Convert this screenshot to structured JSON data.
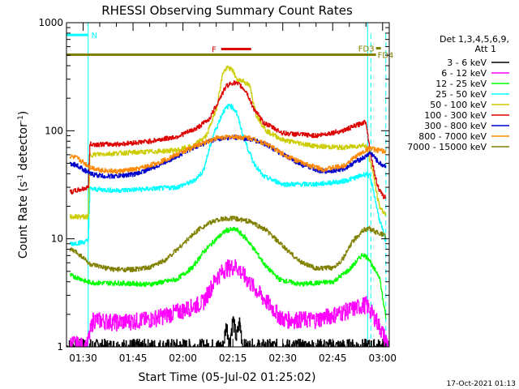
{
  "chart_data": {
    "type": "line",
    "title": "RHESSI Observing Summary Count Rates",
    "xlabel": "Start Time (05-Jul-02 01:25:02)",
    "ylabel_main": "Count Rate (s",
    "ylabel_sup1": "-1",
    "ylabel_mid": " detector",
    "ylabel_sup2": "-1",
    "ylabel_end": ")",
    "yscale": "log",
    "ylim": [
      1,
      1000
    ],
    "xlim_minutes": [
      85,
      182
    ],
    "y_ticks": [
      {
        "value": 1,
        "label": "1"
      },
      {
        "value": 10,
        "label": "10"
      },
      {
        "value": 100,
        "label": "100"
      },
      {
        "value": 1000,
        "label": "1000"
      }
    ],
    "x_ticks": [
      {
        "value": 90,
        "label": "01:30"
      },
      {
        "value": 105,
        "label": "01:45"
      },
      {
        "value": 120,
        "label": "02:00"
      },
      {
        "value": 135,
        "label": "02:15"
      },
      {
        "value": 150,
        "label": "02:30"
      },
      {
        "value": 165,
        "label": "02:45"
      },
      {
        "value": 180,
        "label": "03:00"
      }
    ],
    "legend": {
      "position": "right",
      "header_line1": "Det 1,3,4,5,6,9,",
      "header_line2": "Att 1",
      "entries": [
        {
          "label": "3 - 6 keV",
          "color": "#000000"
        },
        {
          "label": "6 - 12 keV",
          "color": "#ff00ff"
        },
        {
          "label": "12 - 25 keV",
          "color": "#00ff00"
        },
        {
          "label": "25 - 50 keV",
          "color": "#00ffff"
        },
        {
          "label": "50 - 100 keV",
          "color": "#cccc00"
        },
        {
          "label": "100 - 300 keV",
          "color": "#dd0000"
        },
        {
          "label": "300 - 800 keV",
          "color": "#0000cc"
        },
        {
          "label": "800 - 7000 keV",
          "color": "#ff8800"
        },
        {
          "label": "7000 - 15000 keV",
          "color": "#808000"
        }
      ]
    },
    "flag_bars": [
      {
        "label": "N",
        "color": "#00ffff",
        "x_start": 85,
        "x_end": 91.5,
        "level": 770
      },
      {
        "label": "F",
        "color": "#dd0000",
        "x_start": 131.5,
        "x_end": 140.5,
        "level": 570
      },
      {
        "label": "FD3",
        "color": "#808000",
        "x_start": 178,
        "x_end": 179.5,
        "level": 580
      },
      {
        "label": "FD4",
        "color": "#808000",
        "x_start": 85,
        "x_end": 178,
        "level": 505
      }
    ],
    "night_boundaries_minutes": [
      91.5,
      175.5
    ],
    "saa_markers_minutes": [
      175.5,
      180
    ],
    "series": [
      {
        "name": "3 - 6 keV",
        "color": "#000000",
        "points": [
          [
            85,
            1
          ],
          [
            132,
            1
          ],
          [
            133,
            1.6
          ],
          [
            134,
            1.1
          ],
          [
            135,
            1.8
          ],
          [
            136,
            1.2
          ],
          [
            137,
            1.7
          ],
          [
            138,
            1
          ],
          [
            182,
            1
          ]
        ]
      },
      {
        "name": "6 - 12 keV",
        "color": "#ff00ff",
        "points": [
          [
            86,
            1.1
          ],
          [
            91,
            1
          ],
          [
            93,
            1.8
          ],
          [
            100,
            1.7
          ],
          [
            110,
            1.8
          ],
          [
            120,
            2.2
          ],
          [
            126,
            2.6
          ],
          [
            130,
            4.4
          ],
          [
            133,
            5.4
          ],
          [
            136,
            5.6
          ],
          [
            139,
            4.3
          ],
          [
            143,
            3.1
          ],
          [
            150,
            1.8
          ],
          [
            160,
            1.8
          ],
          [
            170,
            2.2
          ],
          [
            175,
            2.5
          ],
          [
            178,
            1.8
          ],
          [
            182,
            1
          ]
        ]
      },
      {
        "name": "12 - 25 keV",
        "color": "#00ff00",
        "points": [
          [
            86,
            4.6
          ],
          [
            89,
            4.3
          ],
          [
            91,
            4.0
          ],
          [
            94,
            3.9
          ],
          [
            100,
            3.9
          ],
          [
            110,
            3.8
          ],
          [
            118,
            4.2
          ],
          [
            123,
            5.5
          ],
          [
            126,
            7.5
          ],
          [
            130,
            10
          ],
          [
            133,
            12
          ],
          [
            136,
            12.2
          ],
          [
            139,
            10
          ],
          [
            142,
            7.5
          ],
          [
            145,
            5.5
          ],
          [
            149,
            4.2
          ],
          [
            155,
            3.8
          ],
          [
            165,
            4.0
          ],
          [
            170,
            5.2
          ],
          [
            174,
            7.2
          ],
          [
            176,
            6.5
          ],
          [
            177,
            5.4
          ],
          [
            178,
            5.0
          ],
          [
            179,
            4.5
          ],
          [
            180,
            2.8
          ],
          [
            181,
            1.8
          ]
        ]
      },
      {
        "name": "25 - 50 keV",
        "color": "#00ffff",
        "points": [
          [
            86,
            9
          ],
          [
            90,
            9.3
          ],
          [
            91.5,
            9.6
          ],
          [
            92,
            29
          ],
          [
            100,
            28
          ],
          [
            110,
            29
          ],
          [
            118,
            30
          ],
          [
            123,
            34
          ],
          [
            126,
            42
          ],
          [
            129,
            90
          ],
          [
            132,
            150
          ],
          [
            134,
            175
          ],
          [
            136,
            150
          ],
          [
            138,
            90
          ],
          [
            141,
            52
          ],
          [
            144,
            38
          ],
          [
            150,
            32
          ],
          [
            160,
            32
          ],
          [
            168,
            34
          ],
          [
            172,
            37
          ],
          [
            175,
            40
          ],
          [
            176,
            38
          ],
          [
            177,
            30
          ],
          [
            178,
            21
          ],
          [
            179,
            15
          ],
          [
            180,
            12
          ],
          [
            181,
            9
          ]
        ]
      },
      {
        "name": "50 - 100 keV",
        "color": "#cccc00",
        "points": [
          [
            86,
            16
          ],
          [
            90,
            16
          ],
          [
            91.5,
            16
          ],
          [
            92,
            60
          ],
          [
            100,
            62
          ],
          [
            110,
            64
          ],
          [
            118,
            66
          ],
          [
            123,
            72
          ],
          [
            127,
            90
          ],
          [
            130,
            160
          ],
          [
            132,
            350
          ],
          [
            133.5,
            385
          ],
          [
            135,
            360
          ],
          [
            136,
            300
          ],
          [
            138,
            290
          ],
          [
            140,
            260
          ],
          [
            142,
            140
          ],
          [
            145,
            100
          ],
          [
            150,
            82
          ],
          [
            160,
            72
          ],
          [
            168,
            70
          ],
          [
            172,
            72
          ],
          [
            175,
            74
          ],
          [
            176,
            55
          ],
          [
            177,
            42
          ],
          [
            178,
            28
          ],
          [
            179,
            20
          ],
          [
            180,
            18
          ],
          [
            181,
            17
          ]
        ]
      },
      {
        "name": "100 - 300 keV",
        "color": "#dd0000",
        "points": [
          [
            86,
            27
          ],
          [
            88,
            28
          ],
          [
            90,
            29
          ],
          [
            91.5,
            30
          ],
          [
            92,
            75
          ],
          [
            100,
            75
          ],
          [
            110,
            80
          ],
          [
            118,
            88
          ],
          [
            124,
            105
          ],
          [
            128,
            130
          ],
          [
            131,
            200
          ],
          [
            133,
            260
          ],
          [
            135,
            280
          ],
          [
            137,
            265
          ],
          [
            139,
            230
          ],
          [
            141,
            165
          ],
          [
            144,
            120
          ],
          [
            150,
            95
          ],
          [
            160,
            90
          ],
          [
            168,
            100
          ],
          [
            172,
            112
          ],
          [
            175,
            122
          ],
          [
            176,
            70
          ],
          [
            177,
            48
          ],
          [
            178,
            35
          ],
          [
            179,
            28
          ],
          [
            180,
            25
          ],
          [
            181,
            24
          ]
        ]
      },
      {
        "name": "300 - 800 keV",
        "color": "#0000cc",
        "points": [
          [
            86,
            50
          ],
          [
            88,
            48
          ],
          [
            90,
            44
          ],
          [
            92,
            40
          ],
          [
            96,
            38
          ],
          [
            100,
            38
          ],
          [
            106,
            40
          ],
          [
            112,
            47
          ],
          [
            118,
            58
          ],
          [
            124,
            72
          ],
          [
            130,
            84
          ],
          [
            135,
            87
          ],
          [
            140,
            84
          ],
          [
            145,
            75
          ],
          [
            150,
            60
          ],
          [
            156,
            48
          ],
          [
            162,
            42
          ],
          [
            168,
            44
          ],
          [
            172,
            52
          ],
          [
            175,
            58
          ],
          [
            176,
            62
          ],
          [
            177,
            60
          ],
          [
            178,
            54
          ],
          [
            179,
            50
          ],
          [
            180,
            48
          ],
          [
            181,
            47
          ]
        ]
      },
      {
        "name": "800 - 7000 keV",
        "color": "#ff8800",
        "points": [
          [
            86,
            58
          ],
          [
            88,
            56
          ],
          [
            90,
            51
          ],
          [
            92,
            46
          ],
          [
            96,
            43
          ],
          [
            100,
            42
          ],
          [
            106,
            44
          ],
          [
            112,
            50
          ],
          [
            118,
            60
          ],
          [
            124,
            73
          ],
          [
            130,
            86
          ],
          [
            135,
            88
          ],
          [
            140,
            86
          ],
          [
            145,
            76
          ],
          [
            150,
            61
          ],
          [
            156,
            50
          ],
          [
            162,
            44
          ],
          [
            168,
            47
          ],
          [
            172,
            58
          ],
          [
            175,
            66
          ],
          [
            176,
            70
          ],
          [
            177,
            68
          ],
          [
            178,
            66
          ],
          [
            179,
            66
          ],
          [
            180,
            65
          ],
          [
            181,
            64
          ]
        ]
      },
      {
        "name": "7000 - 15000 keV",
        "color": "#808000",
        "points": [
          [
            86,
            8
          ],
          [
            88,
            7.5
          ],
          [
            90,
            6.7
          ],
          [
            92,
            5.8
          ],
          [
            96,
            5.4
          ],
          [
            100,
            5.2
          ],
          [
            105,
            5.2
          ],
          [
            110,
            5.4
          ],
          [
            115,
            6.5
          ],
          [
            120,
            9
          ],
          [
            125,
            12.5
          ],
          [
            130,
            15
          ],
          [
            135,
            15.5
          ],
          [
            140,
            14.5
          ],
          [
            145,
            12
          ],
          [
            150,
            8.5
          ],
          [
            155,
            6.2
          ],
          [
            160,
            5.3
          ],
          [
            165,
            5.4
          ],
          [
            168,
            6.5
          ],
          [
            171,
            9.5
          ],
          [
            174,
            12
          ],
          [
            176,
            12.5
          ],
          [
            178,
            11.5
          ],
          [
            180,
            11
          ],
          [
            181,
            10.5
          ]
        ]
      }
    ],
    "footer_date": "17-Oct-2021 01:13"
  }
}
